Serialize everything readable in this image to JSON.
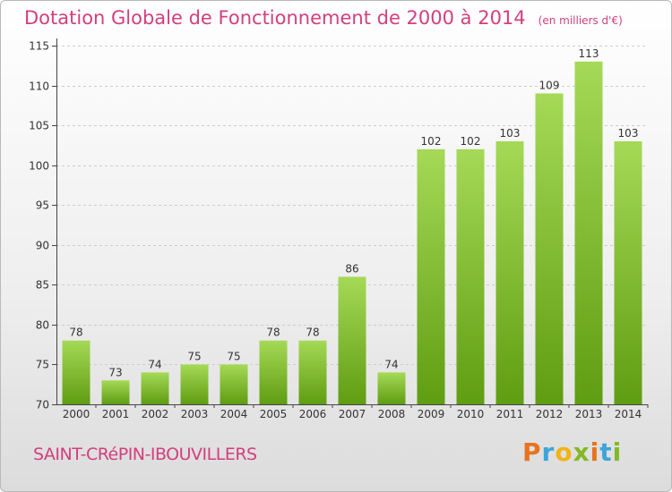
{
  "colors": {
    "title": "#d23f7e",
    "bar_top": "#a5d957",
    "bar_bottom": "#5f9d12",
    "axis": "#444444",
    "grid": "#cccccc"
  },
  "header": {
    "title": "Dotation Globale de Fonctionnement de 2000 à 2014",
    "unit": "(en milliers d'€)"
  },
  "footer": {
    "commune": "SAINT-CRéPIN-IBOUVILLERS",
    "logo": [
      "P",
      "r",
      "o",
      "x",
      "i",
      "t",
      "i"
    ],
    "logo_colors": [
      "#e8731f",
      "#3da5d9",
      "#f2b316",
      "#82b924",
      "#e8731f",
      "#3da5d9",
      "#82b924"
    ]
  },
  "chart_data": {
    "type": "bar",
    "categories": [
      "2000",
      "2001",
      "2002",
      "2003",
      "2004",
      "2005",
      "2006",
      "2007",
      "2008",
      "2009",
      "2010",
      "2011",
      "2012",
      "2013",
      "2014"
    ],
    "values": [
      78,
      73,
      74,
      75,
      75,
      78,
      78,
      86,
      74,
      102,
      102,
      103,
      109,
      113,
      103
    ],
    "value_labels": [
      "78",
      "73",
      "74",
      "75",
      "75",
      "78",
      "78",
      "86",
      "74",
      "102",
      "102",
      "103",
      "109",
      "113",
      "103"
    ],
    "ylim": [
      70,
      115
    ],
    "yticks": [
      70,
      75,
      80,
      85,
      90,
      95,
      100,
      105,
      110,
      115
    ],
    "ytick_labels": [
      "70",
      "75",
      "80",
      "85",
      "90",
      "95",
      "100",
      "105",
      "110",
      "115"
    ],
    "grid": true,
    "legend": false
  }
}
